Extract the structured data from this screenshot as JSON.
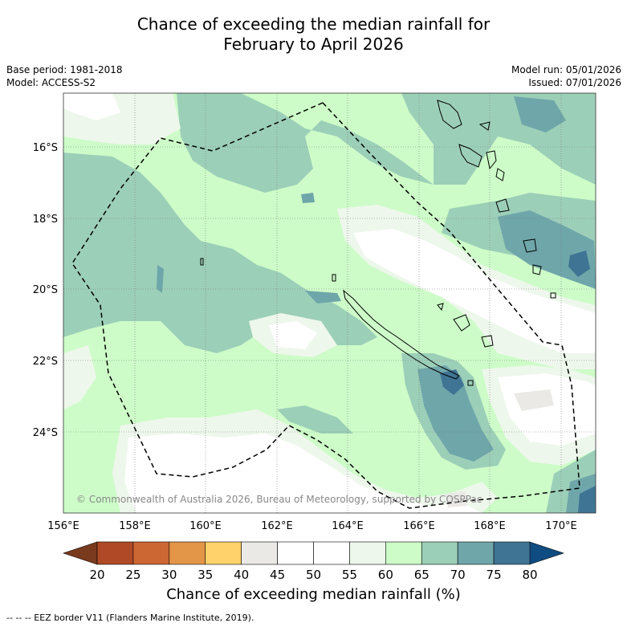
{
  "title": {
    "line1": "Chance of exceeding the median rainfall for",
    "line2": "February to April 2026"
  },
  "meta": {
    "base_period": "Base period: 1981-2018",
    "model": "Model: ACCESS-S2",
    "model_run": "Model run: 05/01/2026",
    "issued": "Issued: 07/01/2026"
  },
  "map": {
    "lon_labels": [
      "156°E",
      "158°E",
      "160°E",
      "162°E",
      "164°E",
      "166°E",
      "168°E",
      "170°E"
    ],
    "lat_labels": [
      "16°S",
      "18°S",
      "20°S",
      "22°S",
      "24°S"
    ],
    "copyright": "© Commonwealth of Australia 2026, Bureau of Meteorology, supported by COSPPac"
  },
  "colorbar": {
    "ticks": [
      "20",
      "25",
      "30",
      "35",
      "40",
      "45",
      "50",
      "55",
      "60",
      "65",
      "70",
      "75",
      "80"
    ],
    "colors": [
      "#b04a26",
      "#cc6633",
      "#e39548",
      "#ffd26b",
      "#ebe9e6",
      "#ffffff",
      "#ffffff",
      "#eef7ec",
      "#cdfcc8",
      "#9ccfb8",
      "#6fa6aa",
      "#3f7494"
    ],
    "under_color": "#7a3a1e",
    "over_color": "#0f4c81",
    "label": "Chance of exceeding median rainfall (%)"
  },
  "footer": {
    "eez_note": "--  --  -- EEZ border V11 (Flanders Marine Institute, 2019)."
  }
}
